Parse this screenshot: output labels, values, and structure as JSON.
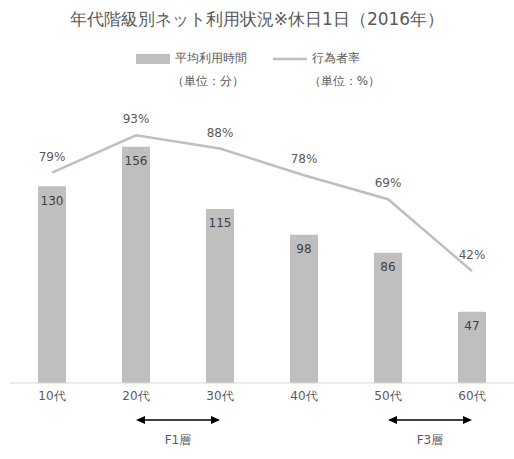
{
  "chart_data": {
    "type": "bar",
    "title": "年代階級別ネット利用状況※休日1日（2016年）",
    "categories": [
      "10代",
      "20代",
      "30代",
      "40代",
      "50代",
      "60代"
    ],
    "series": [
      {
        "name": "平均利用時間",
        "unit_label": "（単位：分）",
        "type": "bar",
        "color": "#bfbfbf",
        "values": [
          130,
          156,
          115,
          98,
          86,
          47
        ]
      },
      {
        "name": "行為者率",
        "unit_label": "（単位：%）",
        "type": "line",
        "axis": "y2",
        "color": "#bfbfbf",
        "values": [
          79,
          93,
          88,
          78,
          69,
          42
        ],
        "value_labels": [
          "79%",
          "93%",
          "88%",
          "78%",
          "69%",
          "42%"
        ]
      }
    ],
    "ylim": [
      0,
      220
    ],
    "y2lim": [
      0,
      125
    ],
    "grid": false,
    "legend": "top",
    "data_labels": true,
    "tick_labels": "x",
    "annotations": [
      {
        "text": "F1層",
        "from": "20代",
        "to": "30代"
      },
      {
        "text": "F3層",
        "from": "50代",
        "to": "60代"
      }
    ]
  }
}
